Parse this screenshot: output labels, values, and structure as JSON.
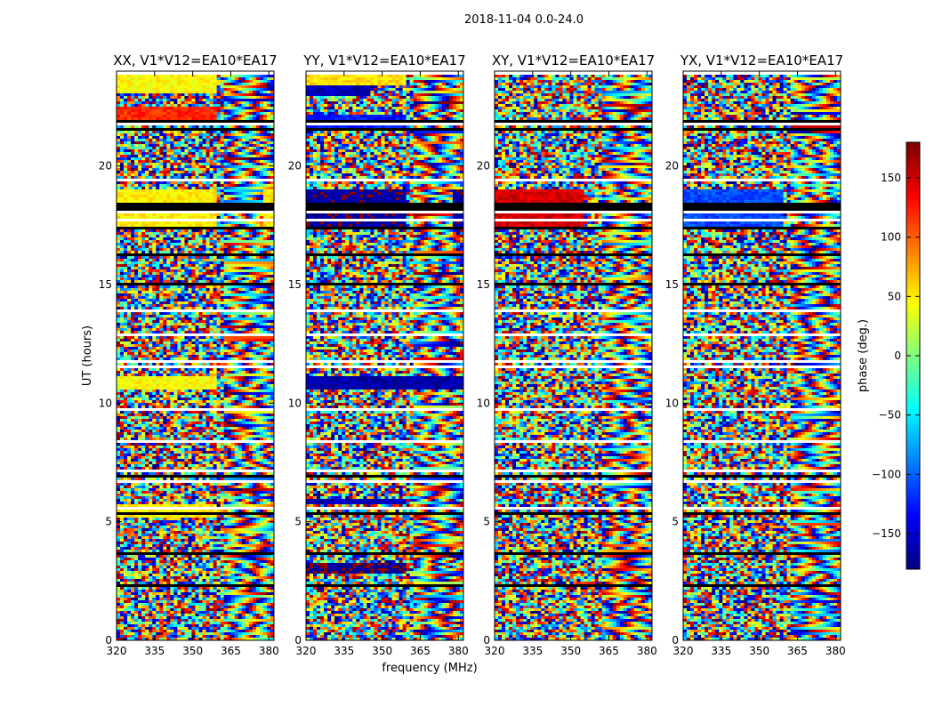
{
  "figure": {
    "suptitle": "2018-11-04 0.0-24.0",
    "xlabel": "frequency (MHz)",
    "ylabel": "UT (hours)",
    "colorbar_label": "phase (deg.)"
  },
  "chart_data": {
    "type": "heatmap",
    "colormap": "jet",
    "x": {
      "label": "frequency (MHz)",
      "range": [
        320,
        382
      ],
      "ticks": [
        320,
        335,
        350,
        365,
        380
      ]
    },
    "y": {
      "label": "UT (hours)",
      "range": [
        0,
        24
      ],
      "ticks": [
        0,
        5,
        10,
        15,
        20
      ]
    },
    "colorbar": {
      "label": "phase (deg.)",
      "range": [
        -180,
        180
      ],
      "ticks": [
        -150,
        -100,
        -50,
        0,
        50,
        100,
        150
      ]
    },
    "panels": [
      {
        "title": "XX, V1*V12=EA10*EA17",
        "coherent_bands": [
          {
            "t": [
              23.1,
              23.9
            ],
            "f": [
              320,
              360
            ],
            "phase": 45
          },
          {
            "t": [
              21.9,
              22.5
            ],
            "f": [
              320,
              360
            ],
            "phase": 120
          },
          {
            "t": [
              17.3,
              19.0
            ],
            "f": [
              320,
              360
            ],
            "phase": 50
          },
          {
            "t": [
              17.3,
              19.0
            ],
            "f": [
              378,
              382
            ],
            "phase": 50
          },
          {
            "t": [
              10.6,
              11.1
            ],
            "f": [
              320,
              360
            ],
            "phase": 45
          },
          {
            "t": [
              5.2,
              5.7
            ],
            "f": [
              320,
              360
            ],
            "phase": 50
          }
        ]
      },
      {
        "title": "YY, V1*V12=EA10*EA17",
        "coherent_bands": [
          {
            "t": [
              23.4,
              23.9
            ],
            "f": [
              320,
              360
            ],
            "phase": 55
          },
          {
            "t": [
              22.9,
              23.4
            ],
            "f": [
              320,
              345
            ],
            "phase": -160
          },
          {
            "t": [
              21.6,
              22.2
            ],
            "f": [
              320,
              360
            ],
            "phase": -130
          },
          {
            "t": [
              17.3,
              19.0
            ],
            "f": [
              320,
              360
            ],
            "phase": -170
          },
          {
            "t": [
              17.3,
              19.0
            ],
            "f": [
              378,
              382
            ],
            "phase": -170
          },
          {
            "t": [
              10.6,
              11.1
            ],
            "f": [
              320,
              382
            ],
            "phase": -165
          },
          {
            "t": [
              5.7,
              6.0
            ],
            "f": [
              320,
              360
            ],
            "phase": -160
          },
          {
            "t": [
              2.8,
              3.3
            ],
            "f": [
              320,
              360
            ],
            "phase": -175
          }
        ]
      },
      {
        "title": "XY, V1*V12=EA10*EA17",
        "coherent_bands": [
          {
            "t": [
              17.3,
              19.0
            ],
            "f": [
              320,
              355
            ],
            "phase": 150
          }
        ]
      },
      {
        "title": "YX, V1*V12=EA10*EA17",
        "coherent_bands": [
          {
            "t": [
              17.3,
              19.0
            ],
            "f": [
              320,
              360
            ],
            "phase": -110
          }
        ]
      }
    ]
  }
}
